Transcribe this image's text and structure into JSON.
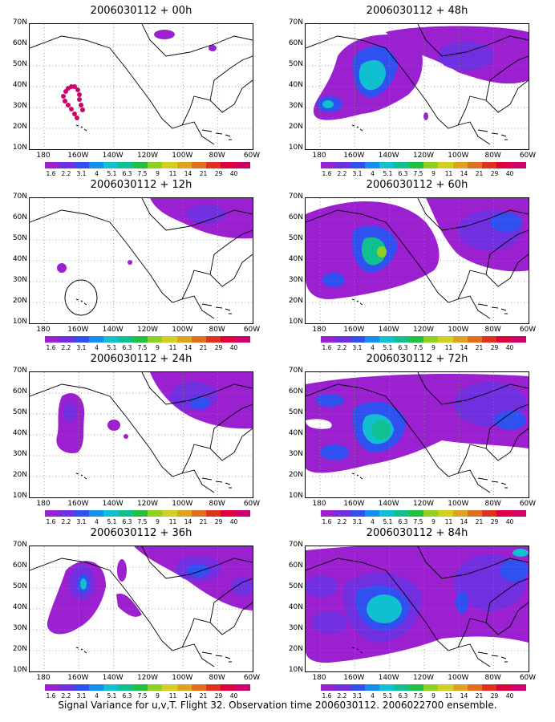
{
  "colorbar": {
    "labels": [
      "1.6",
      "2.2",
      "3.1",
      "4",
      "5.1",
      "6.3",
      "7.5",
      "9",
      "11",
      "14",
      "21",
      "29",
      "40"
    ],
    "colors": [
      "#9a20d0",
      "#7030e0",
      "#3050f0",
      "#1490f0",
      "#10c0d0",
      "#10c090",
      "#20c040",
      "#90d020",
      "#d0d020",
      "#e0a020",
      "#e07020",
      "#e03020",
      "#e00040",
      "#d0006a"
    ]
  },
  "axes": {
    "y_labels": [
      "70N",
      "60N",
      "50N",
      "40N",
      "30N",
      "20N",
      "10N"
    ],
    "x_labels": [
      "180",
      "160W",
      "140W",
      "120W",
      "100W",
      "80W",
      "60W"
    ]
  },
  "panels": [
    {
      "title": "2006030112 + 00h"
    },
    {
      "title": "2006030112 + 48h"
    },
    {
      "title": "2006030112 + 12h"
    },
    {
      "title": "2006030112 + 60h"
    },
    {
      "title": "2006030112 + 24h"
    },
    {
      "title": "2006030112 + 72h"
    },
    {
      "title": "2006030112 + 36h"
    },
    {
      "title": "2006030112 + 84h"
    }
  ],
  "caption": "Signal Variance for u,v,T. Flight 32. Observation time 2006030112. 2006022700 ensemble."
}
